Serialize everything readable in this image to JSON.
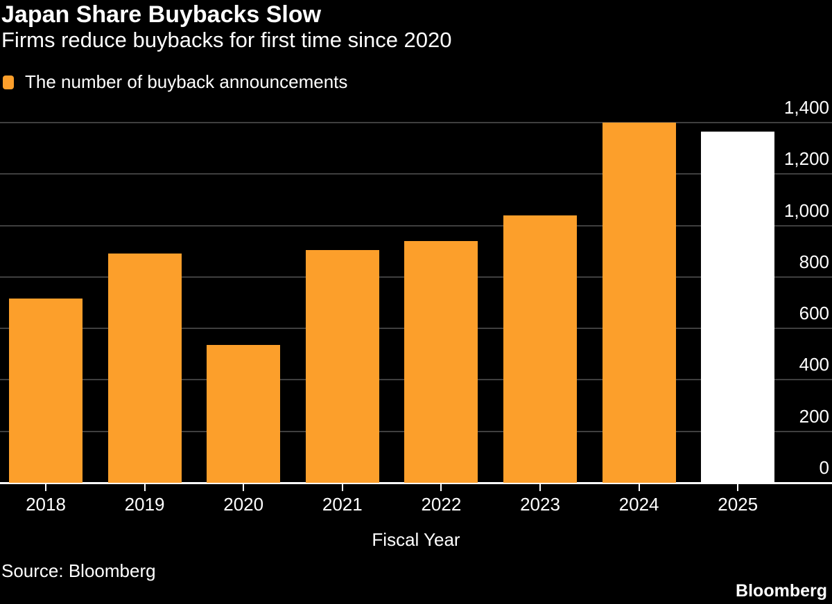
{
  "header": {
    "title": "Japan Share Buybacks Slow",
    "subtitle": "Firms reduce buybacks for first time since 2020"
  },
  "legend": {
    "items": [
      {
        "label": "The number of buyback announcements",
        "color": "#FC9F2B"
      }
    ]
  },
  "chart_data": {
    "type": "bar",
    "title": "Japan Share Buybacks Slow",
    "subtitle": "Firms reduce buybacks for first time since 2020",
    "categories": [
      "2018",
      "2019",
      "2020",
      "2021",
      "2022",
      "2023",
      "2024",
      "2025"
    ],
    "values": [
      715,
      890,
      535,
      905,
      940,
      1040,
      1400,
      1365
    ],
    "bar_colors": [
      "#FC9F2B",
      "#FC9F2B",
      "#FC9F2B",
      "#FC9F2B",
      "#FC9F2B",
      "#FC9F2B",
      "#FC9F2B",
      "#FFFFFF"
    ],
    "xlabel": "Fiscal Year",
    "ylabel": "",
    "ylim": [
      0,
      1400
    ],
    "ytick_interval": 200,
    "yticks": [
      "0",
      "200",
      "400",
      "600",
      "800",
      "1,000",
      "1,200",
      "1,400"
    ],
    "legend_entries": [
      "The number of buyback announcements"
    ],
    "legend_position": "top-left",
    "grid": true
  },
  "footer": {
    "source": "Source: Bloomberg",
    "brand": "Bloomberg"
  },
  "colors": {
    "background": "#000000",
    "text": "#FFFFFF",
    "grid": "#3F3F3F",
    "axis": "#FFFFFF",
    "bar_orange": "#FC9F2B",
    "bar_projection_white": "#FFFFFF"
  }
}
